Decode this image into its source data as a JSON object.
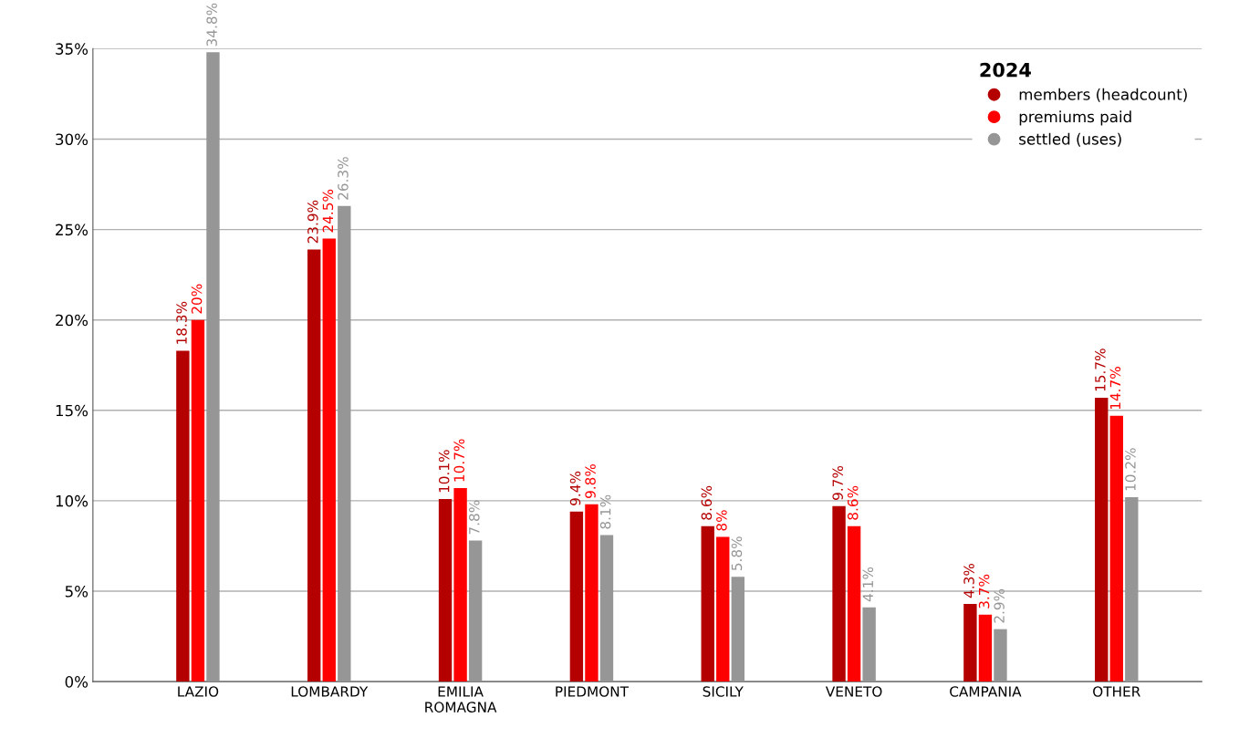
{
  "chart_data": {
    "type": "bar",
    "categories": [
      "LAZIO",
      "LOMBARDY",
      "EMILIA\nROMAGNA",
      "PIEDMONT",
      "SICILY",
      "VENETO",
      "CAMPANIA",
      "OTHER"
    ],
    "series": [
      {
        "name": "members (headcount)",
        "color": "#b50000",
        "values": [
          18.3,
          23.9,
          10.1,
          9.4,
          8.6,
          9.7,
          4.3,
          15.7
        ],
        "value_labels": [
          "18.3%",
          "23.9%",
          "10.1%",
          "9.4%",
          "8.6%",
          "9.7%",
          "4.3%",
          "15.7%"
        ]
      },
      {
        "name": "premiums paid",
        "color": "#ff0000",
        "values": [
          20,
          24.5,
          10.7,
          9.8,
          8,
          8.6,
          3.7,
          14.7
        ],
        "value_labels": [
          "20%",
          "24.5%",
          "10.7%",
          "9.8%",
          "8%",
          "8.6%",
          "3.7%",
          "14.7%"
        ]
      },
      {
        "name": "settled (uses)",
        "color": "#969696",
        "values": [
          34.8,
          26.3,
          7.8,
          8.1,
          5.8,
          4.1,
          2.9,
          10.2
        ],
        "value_labels": [
          "34.8%",
          "26.3%",
          "7.8%",
          "8.1%",
          "5.8%",
          "4.1%",
          "2.9%",
          "10.2%"
        ]
      }
    ],
    "ylim": [
      0,
      35
    ],
    "yticks": [
      {
        "value": 0,
        "label": "0%"
      },
      {
        "value": 5,
        "label": "5%"
      },
      {
        "value": 10,
        "label": "10%"
      },
      {
        "value": 15,
        "label": "15%"
      },
      {
        "value": 20,
        "label": "20%"
      },
      {
        "value": 25,
        "label": "25%"
      },
      {
        "value": 30,
        "label": "30%"
      },
      {
        "value": 35,
        "label": "35%"
      }
    ],
    "legend_title": "2024",
    "legend": "top right",
    "marker": "circle",
    "grid": "y"
  }
}
